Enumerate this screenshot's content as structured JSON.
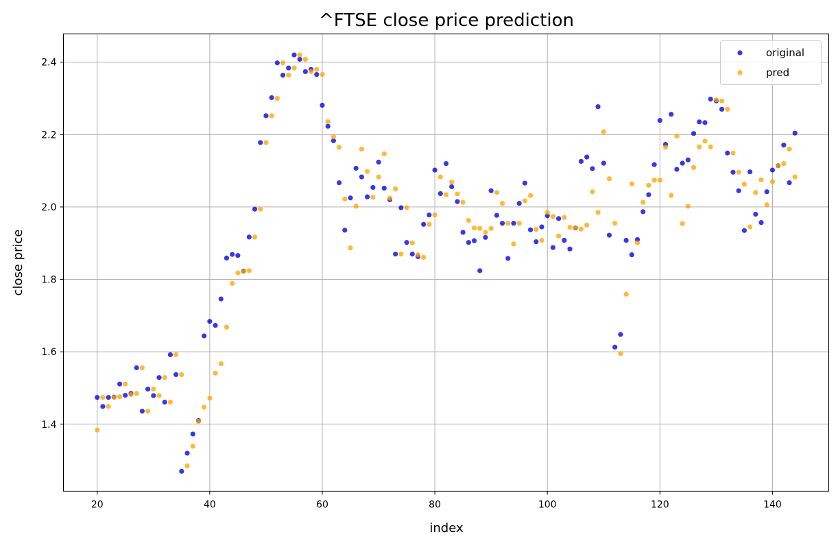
{
  "chart_data": {
    "type": "scatter",
    "title": "^FTSE close price prediction",
    "xlabel": "index",
    "ylabel": "close price",
    "xlim": [
      14,
      150
    ],
    "ylim": [
      1.215,
      2.478
    ],
    "xticks": [
      20,
      40,
      60,
      80,
      100,
      120,
      140
    ],
    "yticks": [
      1.4,
      1.6,
      1.8,
      2.0,
      2.2,
      2.4
    ],
    "grid": true,
    "legend_position": "top-right",
    "x": [
      20,
      21,
      22,
      23,
      24,
      25,
      26,
      27,
      28,
      29,
      30,
      31,
      32,
      33,
      34,
      35,
      36,
      37,
      38,
      39,
      40,
      41,
      42,
      43,
      44,
      45,
      46,
      47,
      48,
      49,
      50,
      51,
      52,
      53,
      54,
      55,
      56,
      57,
      58,
      59,
      60,
      61,
      62,
      63,
      64,
      65,
      66,
      67,
      68,
      69,
      70,
      71,
      72,
      73,
      74,
      75,
      76,
      77,
      78,
      79,
      80,
      81,
      82,
      83,
      84,
      85,
      86,
      87,
      88,
      89,
      90,
      91,
      92,
      93,
      94,
      95,
      96,
      97,
      98,
      99,
      100,
      101,
      102,
      103,
      104,
      105,
      106,
      107,
      108,
      109,
      110,
      111,
      112,
      113,
      114,
      115,
      116,
      117,
      118,
      119,
      120,
      121,
      122,
      123,
      124,
      125,
      126,
      127,
      128,
      129,
      130,
      131,
      132,
      133,
      134,
      135,
      136,
      137,
      138,
      139,
      140,
      141,
      142,
      143,
      144
    ],
    "series": [
      {
        "name": "original",
        "color": "#0000dd",
        "values": [
          1.474,
          1.449,
          1.474,
          1.475,
          1.511,
          1.48,
          1.485,
          1.556,
          1.436,
          1.497,
          1.479,
          1.529,
          1.461,
          1.592,
          1.537,
          1.27,
          1.32,
          1.373,
          1.41,
          1.644,
          1.684,
          1.673,
          1.746,
          1.859,
          1.869,
          1.866,
          1.823,
          1.917,
          1.994,
          2.178,
          2.252,
          2.302,
          2.398,
          2.364,
          2.384,
          2.42,
          2.408,
          2.374,
          2.38,
          2.366,
          2.281,
          2.223,
          2.183,
          2.067,
          1.936,
          2.025,
          2.107,
          2.083,
          2.028,
          2.054,
          2.124,
          2.052,
          2.02,
          1.87,
          1.998,
          1.902,
          1.87,
          1.863,
          1.952,
          1.978,
          2.102,
          2.037,
          2.12,
          2.056,
          2.015,
          1.93,
          1.902,
          1.907,
          1.824,
          1.916,
          2.045,
          1.977,
          1.955,
          1.858,
          1.955,
          2.01,
          2.066,
          1.937,
          1.904,
          1.945,
          1.976,
          1.888,
          1.968,
          1.908,
          1.884,
          1.942,
          2.126,
          2.138,
          2.106,
          2.277,
          2.121,
          1.922,
          1.613,
          1.648,
          1.908,
          1.868,
          1.91,
          1.987,
          2.034,
          2.117,
          2.239,
          2.173,
          2.256,
          2.104,
          2.121,
          2.13,
          2.203,
          2.235,
          2.233,
          2.298,
          2.293,
          2.27,
          2.149,
          2.096,
          2.045,
          1.935,
          2.097,
          1.98,
          1.957,
          2.042,
          2.102,
          2.114,
          2.171,
          2.067,
          2.204
        ]
      },
      {
        "name": "pred",
        "color": "#ffa500",
        "values": [
          1.384,
          1.474,
          1.449,
          1.474,
          1.476,
          1.511,
          1.482,
          1.485,
          1.556,
          1.436,
          1.497,
          1.479,
          1.529,
          1.461,
          1.592,
          1.537,
          1.285,
          1.339,
          1.408,
          1.447,
          1.472,
          1.541,
          1.567,
          1.668,
          1.789,
          1.818,
          1.822,
          1.824,
          1.917,
          1.994,
          2.178,
          2.252,
          2.3,
          2.398,
          2.364,
          2.384,
          2.42,
          2.408,
          2.374,
          2.38,
          2.366,
          2.236,
          2.194,
          2.165,
          2.022,
          1.887,
          2.002,
          2.16,
          2.098,
          2.027,
          2.083,
          2.147,
          2.024,
          2.05,
          1.87,
          1.998,
          1.901,
          1.868,
          1.861,
          1.952,
          1.978,
          2.083,
          2.034,
          2.069,
          2.036,
          2.013,
          1.963,
          1.942,
          1.941,
          1.93,
          1.941,
          2.04,
          2.01,
          1.955,
          1.898,
          1.955,
          2.017,
          2.032,
          1.938,
          1.908,
          1.985,
          1.974,
          1.92,
          1.971,
          1.944,
          1.943,
          1.939,
          1.95,
          2.042,
          1.985,
          2.208,
          2.078,
          1.955,
          1.595,
          1.759,
          2.064,
          1.901,
          2.013,
          2.06,
          2.074,
          2.074,
          2.165,
          2.032,
          2.196,
          1.954,
          2.002,
          2.109,
          2.166,
          2.182,
          2.166,
          2.296,
          2.293,
          2.27,
          2.149,
          2.096,
          2.063,
          1.945,
          2.04,
          2.075,
          2.006,
          2.07,
          2.114,
          2.12,
          2.16,
          2.083
        ]
      }
    ]
  }
}
